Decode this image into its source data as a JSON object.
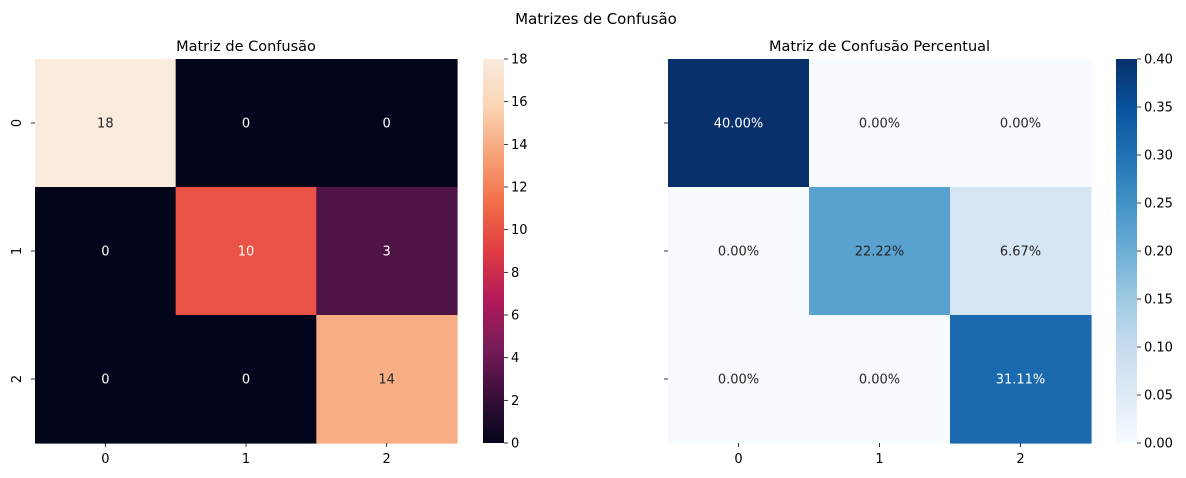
{
  "figure": {
    "title": "Matrizes de Confusão"
  },
  "chart_data": [
    {
      "type": "heatmap",
      "title": "Matriz de Confusão",
      "xlabel": "",
      "ylabel": "",
      "x_tick_labels": [
        "0",
        "1",
        "2"
      ],
      "y_tick_labels": [
        "0",
        "1",
        "2"
      ],
      "values": [
        [
          18,
          0,
          0
        ],
        [
          0,
          10,
          3
        ],
        [
          0,
          0,
          14
        ]
      ],
      "cell_labels": [
        [
          "18",
          "0",
          "0"
        ],
        [
          "0",
          "10",
          "3"
        ],
        [
          "0",
          "0",
          "14"
        ]
      ],
      "colormap": "rocket",
      "vmin": 0,
      "vmax": 18,
      "colorbar_ticks": [
        "0",
        "2",
        "4",
        "6",
        "8",
        "10",
        "12",
        "14",
        "16",
        "18"
      ]
    },
    {
      "type": "heatmap",
      "title": "Matriz de Confusão Percentual",
      "xlabel": "",
      "ylabel": "",
      "x_tick_labels": [
        "0",
        "1",
        "2"
      ],
      "y_tick_labels": [],
      "values": [
        [
          0.4,
          0.0,
          0.0
        ],
        [
          0.0,
          0.2222,
          0.0667
        ],
        [
          0.0,
          0.0,
          0.3111
        ]
      ],
      "cell_labels": [
        [
          "40.00%",
          "0.00%",
          "0.00%"
        ],
        [
          "0.00%",
          "22.22%",
          "6.67%"
        ],
        [
          "0.00%",
          "0.00%",
          "31.11%"
        ]
      ],
      "colormap": "Blues",
      "vmin": 0,
      "vmax": 0.4,
      "colorbar_ticks": [
        "0.00",
        "0.05",
        "0.10",
        "0.15",
        "0.20",
        "0.25",
        "0.30",
        "0.35",
        "0.40"
      ]
    }
  ]
}
